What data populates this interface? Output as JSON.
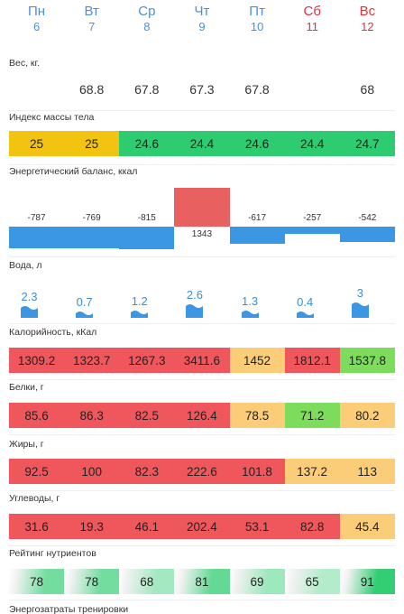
{
  "days": [
    {
      "name": "Пн",
      "date": "6",
      "weekend": false
    },
    {
      "name": "Вт",
      "date": "7",
      "weekend": false
    },
    {
      "name": "Ср",
      "date": "8",
      "weekend": false
    },
    {
      "name": "Чт",
      "date": "9",
      "weekend": false
    },
    {
      "name": "Пт",
      "date": "10",
      "weekend": false
    },
    {
      "name": "Сб",
      "date": "11",
      "weekend": true
    },
    {
      "name": "Вс",
      "date": "12",
      "weekend": true
    }
  ],
  "sections": {
    "weight": "Вес, кг.",
    "bmi": "Индекс массы тела",
    "energy": "Энергетический баланс, ккал",
    "water": "Вода, л",
    "calories": "Калорийность, кКал",
    "protein": "Белки, г",
    "fat": "Жиры, г",
    "carbs": "Углеводы, г",
    "nutrient_rating": "Рейтинг нутриентов",
    "training": "Энергозатраты тренировки"
  },
  "weight": [
    "",
    "68.8",
    "67.8",
    "67.3",
    "67.8",
    "",
    "68"
  ],
  "bmi": [
    {
      "value": "25",
      "color": "#f2c311"
    },
    {
      "value": "25",
      "color": "#f2c311"
    },
    {
      "value": "24.6",
      "color": "#2ecc71"
    },
    {
      "value": "24.4",
      "color": "#2ecc71"
    },
    {
      "value": "24.6",
      "color": "#2ecc71"
    },
    {
      "value": "24.4",
      "color": "#2ecc71"
    },
    {
      "value": "24.7",
      "color": "#2ecc71"
    }
  ],
  "energy_balance": [
    {
      "value": -787,
      "label": "-787"
    },
    {
      "value": -769,
      "label": "-769"
    },
    {
      "value": -815,
      "label": "-815"
    },
    {
      "value": 1343,
      "label": "1343"
    },
    {
      "value": -617,
      "label": "-617"
    },
    {
      "value": -257,
      "label": "-257"
    },
    {
      "value": -542,
      "label": "-542"
    }
  ],
  "energy_colors": {
    "positive": "#e8605f",
    "negative": "#3b97e3"
  },
  "water": [
    {
      "value": 2.3,
      "label": "2.3"
    },
    {
      "value": 0.7,
      "label": "0.7"
    },
    {
      "value": 1.2,
      "label": "1.2"
    },
    {
      "value": 2.6,
      "label": "2.6"
    },
    {
      "value": 1.3,
      "label": "1.3"
    },
    {
      "value": 0.4,
      "label": "0.4"
    },
    {
      "value": 3,
      "label": "3"
    }
  ],
  "calories": [
    {
      "value": "1309.2",
      "color": "#f0575d"
    },
    {
      "value": "1323.7",
      "color": "#f0575d"
    },
    {
      "value": "1267.3",
      "color": "#f0575d"
    },
    {
      "value": "3411.6",
      "color": "#f0575d"
    },
    {
      "value": "1452",
      "color": "#fbcd78"
    },
    {
      "value": "1812.1",
      "color": "#f0575d"
    },
    {
      "value": "1537.8",
      "color": "#7ddc5c"
    }
  ],
  "protein": [
    {
      "value": "85.6",
      "color": "#f0575d"
    },
    {
      "value": "86.3",
      "color": "#f0575d"
    },
    {
      "value": "82.5",
      "color": "#f0575d"
    },
    {
      "value": "126.4",
      "color": "#f0575d"
    },
    {
      "value": "78.5",
      "color": "#fbcd78"
    },
    {
      "value": "71.2",
      "color": "#7ddc5c"
    },
    {
      "value": "80.2",
      "color": "#fbcd78"
    }
  ],
  "fat": [
    {
      "value": "92.5",
      "color": "#f0575d"
    },
    {
      "value": "100",
      "color": "#f0575d"
    },
    {
      "value": "82.3",
      "color": "#f0575d"
    },
    {
      "value": "222.6",
      "color": "#f0575d"
    },
    {
      "value": "101.8",
      "color": "#f0575d"
    },
    {
      "value": "137.2",
      "color": "#fbcd78"
    },
    {
      "value": "113",
      "color": "#fbcd78"
    }
  ],
  "carbs": [
    {
      "value": "31.6",
      "color": "#f0575d"
    },
    {
      "value": "19.3",
      "color": "#f0575d"
    },
    {
      "value": "46.1",
      "color": "#f0575d"
    },
    {
      "value": "202.4",
      "color": "#f0575d"
    },
    {
      "value": "53.1",
      "color": "#f0575d"
    },
    {
      "value": "82.8",
      "color": "#f0575d"
    },
    {
      "value": "45.4",
      "color": "#fbcd78"
    }
  ],
  "nutrient_rating": [
    {
      "value": "78",
      "level": 0.78
    },
    {
      "value": "78",
      "level": 0.78
    },
    {
      "value": "68",
      "level": 0.68
    },
    {
      "value": "81",
      "level": 0.81
    },
    {
      "value": "69",
      "level": 0.69
    },
    {
      "value": "65",
      "level": 0.65
    },
    {
      "value": "91",
      "level": 0.91
    }
  ],
  "water_color": "#3b97e3"
}
